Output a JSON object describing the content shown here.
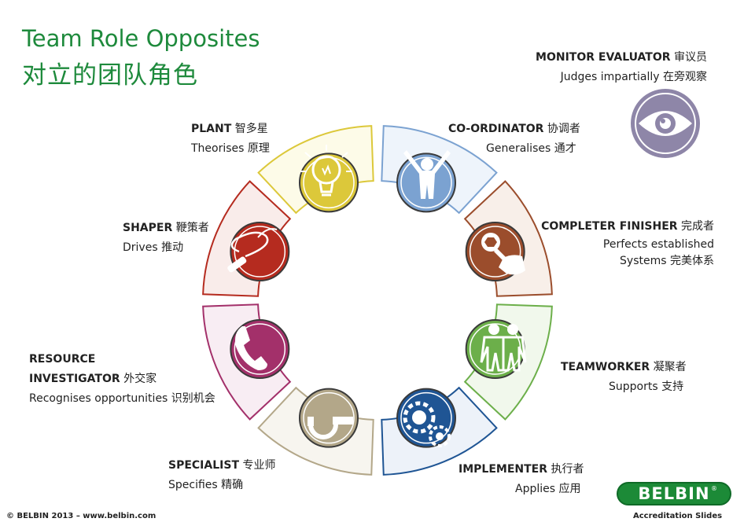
{
  "title": {
    "en": "Team Role Opposites",
    "zh": "对立的团队角色"
  },
  "roles": [
    {
      "name": "PLANT",
      "name_zh": "智多星",
      "desc": "Theorises 原理",
      "color": "#dcc83a"
    },
    {
      "name": "CO-ORDINATOR",
      "name_zh": "协调者",
      "desc": "Generalises 通才",
      "color": "#7ba2d1"
    },
    {
      "name": "COMPLETER FINISHER",
      "name_zh": "完成者",
      "desc": "Perfects established",
      "desc2": "Systems 完美体系",
      "color": "#9b4d2c"
    },
    {
      "name": "TEAMWORKER",
      "name_zh": "凝聚者",
      "desc": "Supports 支持",
      "color": "#6caf4a"
    },
    {
      "name": "IMPLEMENTER",
      "name_zh": "执行者",
      "desc": "Applies 应用",
      "color": "#1f5594"
    },
    {
      "name": "SPECIALIST",
      "name_zh": "专业师",
      "desc": "Specifies 精确",
      "color": "#b3a789"
    },
    {
      "name": "RESOURCE",
      "name2": "INVESTIGATOR",
      "name_zh": "外交家",
      "desc": "Recognises opportunities 识别机会",
      "color": "#a3306a"
    },
    {
      "name": "SHAPER",
      "name_zh": "鞭策者",
      "desc": "Drives 推动",
      "color": "#b52b1f"
    }
  ],
  "monitor": {
    "name": "MONITOR EVALUATOR",
    "name_zh": "审议员",
    "desc": "Judges impartially 在旁观察",
    "color": "#8e86a8"
  },
  "footer": {
    "copyright": "© BELBIN 2013 – www.belbin.com",
    "slides": "Accreditation Slides"
  },
  "logo": {
    "text": "BELBIN",
    "mark": "®"
  }
}
